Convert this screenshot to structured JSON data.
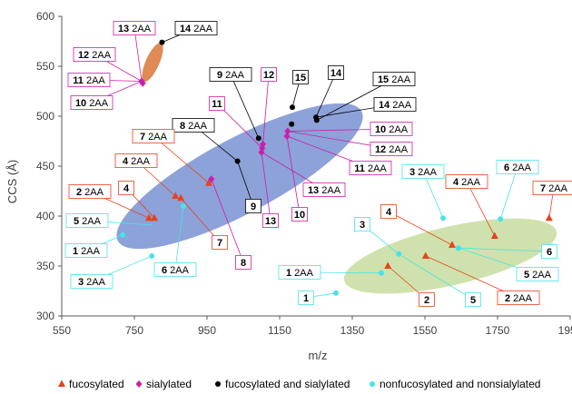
{
  "chart_data": {
    "type": "scatter",
    "xlabel": "m/z",
    "ylabel": "CCS (Å)",
    "xlim": [
      550,
      1950
    ],
    "ylim": [
      300,
      600
    ],
    "xticks": [
      "550",
      "750",
      "950",
      "1150",
      "1350",
      "1550",
      "1750",
      "1950"
    ],
    "yticks": [
      "300",
      "350",
      "400",
      "450",
      "500",
      "550",
      "600"
    ],
    "grid": false,
    "legend_position": "bottom",
    "series": [
      {
        "name": "fucosylated",
        "color": "#e8411c",
        "marker": "triangle",
        "points": [
          {
            "x": 790,
            "y": 398
          },
          {
            "x": 805,
            "y": 398
          },
          {
            "x": 863,
            "y": 420
          },
          {
            "x": 878,
            "y": 418
          },
          {
            "x": 955,
            "y": 433
          },
          {
            "x": 1448,
            "y": 350
          },
          {
            "x": 1552,
            "y": 360
          },
          {
            "x": 1625,
            "y": 371
          },
          {
            "x": 1742,
            "y": 380
          },
          {
            "x": 1892,
            "y": 398
          }
        ]
      },
      {
        "name": "sialylated",
        "color": "#cc1ea8",
        "marker": "diamond",
        "points": [
          {
            "x": 770,
            "y": 535
          },
          {
            "x": 773,
            "y": 533
          },
          {
            "x": 962,
            "y": 437
          },
          {
            "x": 1100,
            "y": 464
          },
          {
            "x": 1102,
            "y": 468
          },
          {
            "x": 1104,
            "y": 472
          },
          {
            "x": 1170,
            "y": 480
          },
          {
            "x": 1172,
            "y": 485
          }
        ]
      },
      {
        "name": "fucosylated and sialylated",
        "color": "#000000",
        "marker": "circle",
        "points": [
          {
            "x": 826,
            "y": 574
          },
          {
            "x": 1034,
            "y": 455
          },
          {
            "x": 1092,
            "y": 478
          },
          {
            "x": 1185,
            "y": 509
          },
          {
            "x": 1183,
            "y": 492
          },
          {
            "x": 1250,
            "y": 499
          },
          {
            "x": 1252,
            "y": 496
          }
        ]
      },
      {
        "name": "nonfucosylated and nonsialylated",
        "color": "#48e3e9",
        "marker": "circle",
        "points": [
          {
            "x": 718,
            "y": 381
          },
          {
            "x": 798,
            "y": 360
          },
          {
            "x": 885,
            "y": 410
          },
          {
            "x": 1305,
            "y": 323
          },
          {
            "x": 1430,
            "y": 343
          },
          {
            "x": 1478,
            "y": 362
          },
          {
            "x": 1600,
            "y": 398
          },
          {
            "x": 1642,
            "y": 368
          },
          {
            "x": 1758,
            "y": 397
          }
        ]
      }
    ],
    "clusters": [
      {
        "color": "#e08a55",
        "cx": 800,
        "cy": 554,
        "rx": 58,
        "ry": 10,
        "angle": -66
      },
      {
        "color": "#8ca2d9",
        "cx": 1040,
        "cy": 440,
        "rx": 380,
        "ry": 55,
        "angle": -28
      },
      {
        "color": "#cfe2ad",
        "cx": 1620,
        "cy": 360,
        "rx": 300,
        "ry": 43,
        "angle": -13
      }
    ],
    "annotations": [
      {
        "num": "13",
        "suffix": "2AA",
        "color": "#cc1ea8",
        "x": 770,
        "y": 535,
        "bx": 148,
        "by": 31
      },
      {
        "num": "14",
        "suffix": "2AA",
        "color": "#000000",
        "x": 826,
        "y": 574,
        "bx": 216,
        "by": 31
      },
      {
        "num": "12",
        "suffix": "2AA",
        "color": "#cc1ea8",
        "x": 770,
        "y": 535,
        "bx": 104,
        "by": 60
      },
      {
        "num": "11",
        "suffix": "2AA",
        "color": "#cc1ea8",
        "x": 770,
        "y": 535,
        "bx": 98,
        "by": 88
      },
      {
        "num": "10",
        "suffix": "2AA",
        "color": "#cc1ea8",
        "x": 770,
        "y": 535,
        "bx": 101,
        "by": 113
      },
      {
        "num": "9",
        "suffix": "2AA",
        "color": "#000000",
        "x": 1092,
        "y": 478,
        "bx": 254,
        "by": 82
      },
      {
        "num": "12",
        "suffix": "",
        "color": "#cc1ea8",
        "x": 1104,
        "y": 472,
        "bx": 296,
        "by": 82
      },
      {
        "num": "15",
        "suffix": "",
        "color": "#000000",
        "x": 1185,
        "y": 509,
        "bx": 331,
        "by": 85
      },
      {
        "num": "14",
        "suffix": "",
        "color": "#000000",
        "x": 1250,
        "y": 499,
        "bx": 370,
        "by": 80
      },
      {
        "num": "15",
        "suffix": "2AA",
        "color": "#000000",
        "x": 1252,
        "y": 496,
        "bx": 434,
        "by": 87
      },
      {
        "num": "14",
        "suffix": "2AA",
        "color": "#000000",
        "x": 1250,
        "y": 499,
        "bx": 435,
        "by": 115
      },
      {
        "num": "11",
        "suffix": "",
        "color": "#cc1ea8",
        "x": 1102,
        "y": 468,
        "bx": 239,
        "by": 114
      },
      {
        "num": "8",
        "suffix": "2AA",
        "color": "#000000",
        "x": 1034,
        "y": 455,
        "bx": 213,
        "by": 138
      },
      {
        "num": "10",
        "suffix": "2AA",
        "color": "#cc1ea8",
        "x": 1172,
        "y": 485,
        "bx": 431,
        "by": 142
      },
      {
        "num": "12",
        "suffix": "2AA",
        "color": "#cc1ea8",
        "x": 1172,
        "y": 485,
        "bx": 431,
        "by": 164
      },
      {
        "num": "7",
        "suffix": "2AA",
        "color": "#e8411c",
        "x": 955,
        "y": 433,
        "bx": 169,
        "by": 150
      },
      {
        "num": "4",
        "suffix": "2AA",
        "color": "#e8411c",
        "x": 863,
        "y": 420,
        "bx": 150,
        "by": 177
      },
      {
        "num": "11",
        "suffix": "2AA",
        "color": "#cc1ea8",
        "x": 1170,
        "y": 480,
        "bx": 408,
        "by": 185
      },
      {
        "num": "4",
        "suffix": "2AA",
        "color": "#e8411c",
        "x": 1742,
        "y": 380,
        "bx": 514,
        "by": 200
      },
      {
        "num": "6",
        "suffix": "2AA",
        "color": "#48e3e9",
        "x": 1758,
        "y": 397,
        "bx": 570,
        "by": 184
      },
      {
        "num": "7",
        "suffix": "2AA",
        "color": "#e8411c",
        "x": 1892,
        "y": 398,
        "bx": 610,
        "by": 207
      },
      {
        "num": "3",
        "suffix": "2AA",
        "color": "#48e3e9",
        "x": 1600,
        "y": 398,
        "bx": 466,
        "by": 189
      },
      {
        "num": "13",
        "suffix": "2AA",
        "color": "#cc1ea8",
        "x": 1100,
        "y": 464,
        "bx": 357,
        "by": 209
      },
      {
        "num": "9",
        "suffix": "",
        "color": "#000000",
        "x": 1034,
        "y": 455,
        "bx": 279,
        "by": 227
      },
      {
        "num": "13",
        "suffix": "",
        "color": "#cc1ea8",
        "x": 1100,
        "y": 464,
        "bx": 298,
        "by": 243
      },
      {
        "num": "10",
        "suffix": "",
        "color": "#cc1ea8",
        "x": 1170,
        "y": 480,
        "bx": 330,
        "by": 236
      },
      {
        "num": "2",
        "suffix": "2AA",
        "color": "#e8411c",
        "x": 790,
        "y": 398,
        "bx": 99,
        "by": 211
      },
      {
        "num": "4",
        "suffix": "",
        "color": "#e8411c",
        "x": 805,
        "y": 398,
        "bx": 139,
        "by": 207
      },
      {
        "num": "5",
        "suffix": "2AA",
        "color": "#48e3e9",
        "x": 798,
        "y": 391,
        "bx": 96,
        "by": 243
      },
      {
        "num": "1",
        "suffix": "2AA",
        "color": "#48e3e9",
        "x": 718,
        "y": 381,
        "bx": 95,
        "by": 276
      },
      {
        "num": "3",
        "suffix": "2AA",
        "color": "#48e3e9",
        "x": 798,
        "y": 360,
        "bx": 101,
        "by": 310
      },
      {
        "num": "7",
        "suffix": "",
        "color": "#e8411c",
        "x": 878,
        "y": 418,
        "bx": 242,
        "by": 267
      },
      {
        "num": "6",
        "suffix": "2AA",
        "color": "#48e3e9",
        "x": 885,
        "y": 410,
        "bx": 193,
        "by": 297
      },
      {
        "num": "8",
        "suffix": "",
        "color": "#cc1ea8",
        "x": 962,
        "y": 437,
        "bx": 268,
        "by": 289
      },
      {
        "num": "4",
        "suffix": "",
        "color": "#e8411c",
        "x": 1625,
        "y": 371,
        "bx": 428,
        "by": 233
      },
      {
        "num": "3",
        "suffix": "",
        "color": "#48e3e9",
        "x": 1478,
        "y": 362,
        "bx": 399,
        "by": 247
      },
      {
        "num": "6",
        "suffix": "",
        "color": "#48e3e9",
        "x": 1642,
        "y": 368,
        "bx": 605,
        "by": 277
      },
      {
        "num": "5",
        "suffix": "2AA",
        "color": "#48e3e9",
        "x": 1642,
        "y": 368,
        "bx": 592,
        "by": 302
      },
      {
        "num": "2",
        "suffix": "2AA",
        "color": "#e8411c",
        "x": 1552,
        "y": 360,
        "bx": 571,
        "by": 328
      },
      {
        "num": "1",
        "suffix": "2AA",
        "color": "#48e3e9",
        "x": 1430,
        "y": 343,
        "bx": 330,
        "by": 300
      },
      {
        "num": "5",
        "suffix": "",
        "color": "#48e3e9",
        "x": 1478,
        "y": 362,
        "bx": 521,
        "by": 330
      },
      {
        "num": "2",
        "suffix": "",
        "color": "#e8411c",
        "x": 1448,
        "y": 350,
        "bx": 470,
        "by": 330
      },
      {
        "num": "1",
        "suffix": "",
        "color": "#48e3e9",
        "x": 1305,
        "y": 323,
        "bx": 337,
        "by": 328
      }
    ]
  }
}
